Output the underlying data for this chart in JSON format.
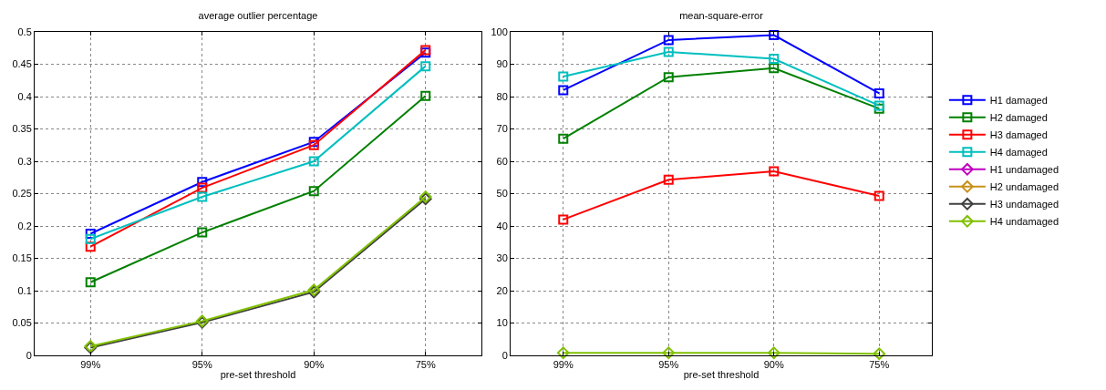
{
  "chart_data": [
    {
      "type": "line",
      "title": "average outlier percentage",
      "xlabel": "pre-set threshold",
      "categories": [
        "99%",
        "95%",
        "90%",
        "75%"
      ],
      "ylim": [
        0,
        0.5
      ],
      "yticks": [
        0,
        0.05,
        0.1,
        0.15,
        0.2,
        0.25,
        0.3,
        0.35,
        0.4,
        0.45,
        0.5
      ],
      "grid": true,
      "legend": false,
      "series": [
        {
          "color": "#0000ff",
          "marker": "square",
          "values": [
            0.188,
            0.268,
            0.33,
            0.468
          ]
        },
        {
          "color": "#008000",
          "marker": "square",
          "values": [
            0.113,
            0.19,
            0.254,
            0.401
          ]
        },
        {
          "color": "#ff0000",
          "marker": "square",
          "values": [
            0.168,
            0.259,
            0.325,
            0.472
          ]
        },
        {
          "color": "#00bfbf",
          "marker": "square",
          "values": [
            0.18,
            0.245,
            0.3,
            0.447
          ]
        },
        {
          "color": "#404040",
          "marker": "diamond",
          "values": [
            0.012,
            0.051,
            0.098,
            0.242
          ]
        },
        {
          "color": "#80c000",
          "marker": "diamond",
          "values": [
            0.014,
            0.053,
            0.101,
            0.245
          ]
        }
      ]
    },
    {
      "type": "line",
      "title": "mean-square-error",
      "xlabel": "pre-set threshold",
      "categories": [
        "99%",
        "95%",
        "90%",
        "75%"
      ],
      "ylim": [
        0,
        100
      ],
      "yticks": [
        0,
        10,
        20,
        30,
        40,
        50,
        60,
        70,
        80,
        90,
        100
      ],
      "grid": true,
      "legend": "right",
      "series": [
        {
          "name": "H1 damaged",
          "color": "#0000ff",
          "marker": "square",
          "values": [
            82,
            97.5,
            99,
            81
          ]
        },
        {
          "name": "H2 damaged",
          "color": "#008000",
          "marker": "square",
          "values": [
            67,
            86,
            88.8,
            76.3
          ]
        },
        {
          "name": "H3 damaged",
          "color": "#ff0000",
          "marker": "square",
          "values": [
            42,
            54.3,
            56.9,
            49.3
          ]
        },
        {
          "name": "H4 damaged",
          "color": "#00bfbf",
          "marker": "square",
          "values": [
            86.2,
            93.8,
            91.7,
            77.2
          ]
        },
        {
          "name": "H1 undamaged",
          "color": "#bf00bf",
          "marker": "diamond",
          "values": [
            null,
            null,
            null,
            null
          ]
        },
        {
          "name": "H2 undamaged",
          "color": "#c8901a",
          "marker": "diamond",
          "values": [
            null,
            null,
            null,
            null
          ]
        },
        {
          "name": "H3 undamaged",
          "color": "#404040",
          "marker": "diamond",
          "values": [
            null,
            null,
            null,
            null
          ]
        },
        {
          "name": "H4 undamaged",
          "color": "#80c000",
          "marker": "diamond",
          "values": [
            0.8,
            0.8,
            0.8,
            0.5
          ]
        }
      ]
    }
  ]
}
